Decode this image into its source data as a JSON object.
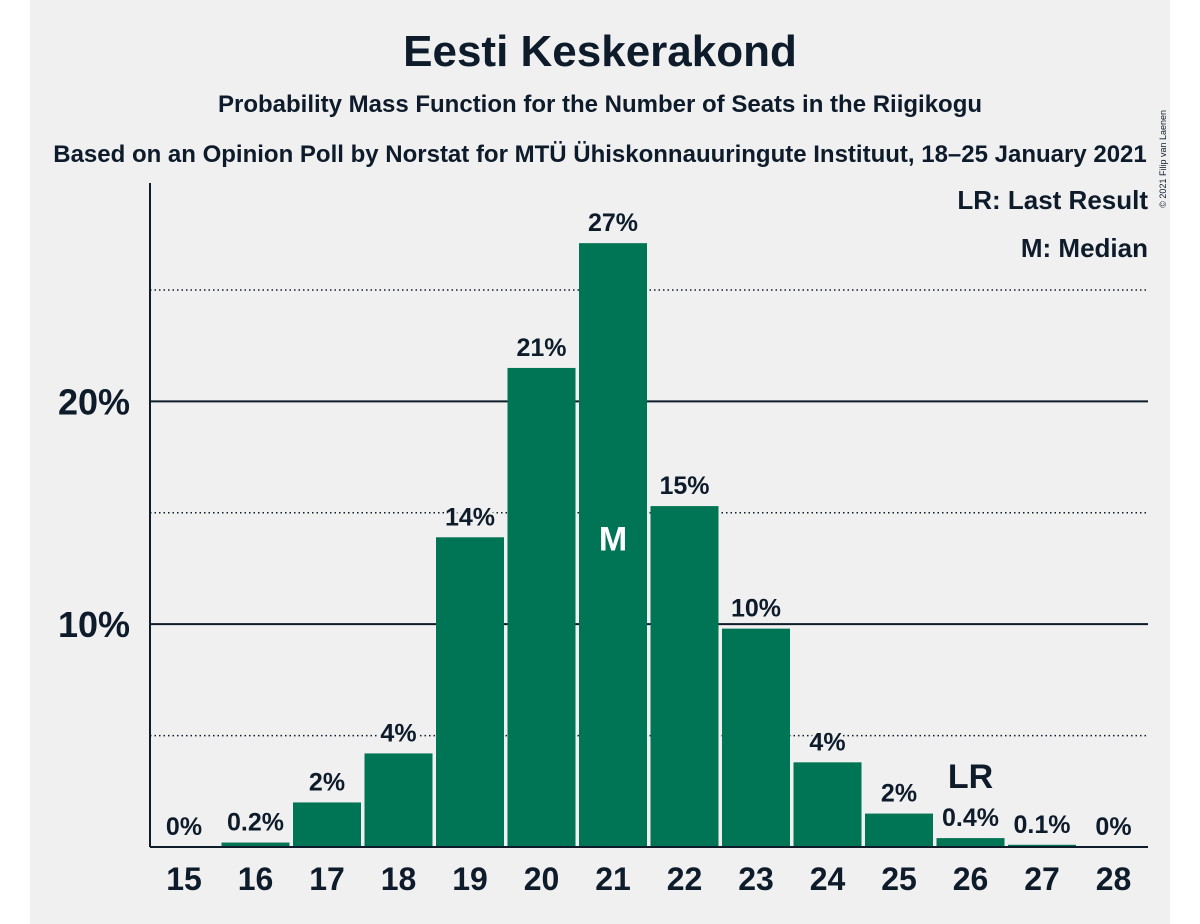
{
  "copyright": "© 2021 Filip van Laenen",
  "chart_data": {
    "type": "bar",
    "title": "Eesti Keskerakond",
    "subtitle": "Probability Mass Function for the Number of Seats in the Riigikogu",
    "subtitle2": "Based on an Opinion Poll by Norstat for MTÜ Ühiskonnauuringute Instituut, 18–25 January 2021",
    "categories": [
      "15",
      "16",
      "17",
      "18",
      "19",
      "20",
      "21",
      "22",
      "23",
      "24",
      "25",
      "26",
      "27",
      "28"
    ],
    "values": [
      0,
      0.2,
      2.0,
      4.2,
      13.9,
      21.5,
      27.1,
      15.3,
      9.8,
      3.8,
      1.5,
      0.4,
      0.1,
      0
    ],
    "value_labels": [
      "0%",
      "0.2%",
      "2%",
      "4%",
      "14%",
      "21%",
      "27%",
      "15%",
      "10%",
      "4%",
      "2%",
      "0.4%",
      "0.1%",
      "0%"
    ],
    "ylim": [
      0,
      29.8
    ],
    "yticks": [
      10,
      20
    ],
    "ytick_labels": [
      "10%",
      "20%"
    ],
    "minor_gridlines": [
      5,
      15,
      25
    ],
    "bar_color": "#007555",
    "median_category": "21",
    "median_marker": "M",
    "last_result_category": "26",
    "last_result_marker": "LR",
    "legend": [
      "LR: Last Result",
      "M: Median"
    ],
    "legend_position": "top-right"
  }
}
